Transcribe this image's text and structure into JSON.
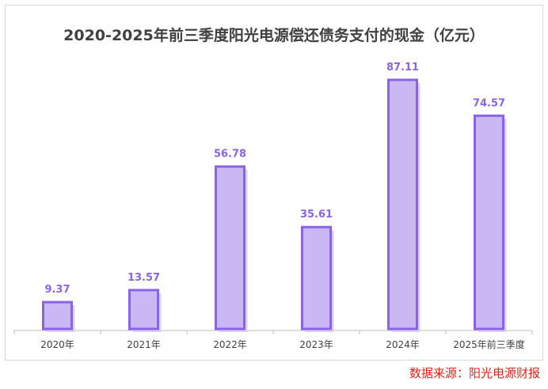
{
  "chart_data": {
    "type": "bar",
    "title": "2020-2025年前三季度阳光电源偿还债务支付的现金（亿元）",
    "categories": [
      "2020年",
      "2021年",
      "2022年",
      "2023年",
      "2024年",
      "2025年前三季度"
    ],
    "values": [
      9.37,
      13.57,
      56.78,
      35.61,
      87.11,
      74.57
    ],
    "value_labels": [
      "9.37",
      "13.57",
      "56.78",
      "35.61",
      "87.11",
      "74.57"
    ],
    "ylim": [
      0,
      87.11
    ],
    "xlabel": "",
    "ylabel": "",
    "grid": false,
    "legend": "none"
  },
  "colors": {
    "bar_fill": "#c9b8f3",
    "bar_outline": "#8a63e6",
    "bar_shadow": "#d8d0ec",
    "label_color": "#8a63e6",
    "axis": "#bfbfbf",
    "title": "#404040",
    "source": "#e8211c"
  },
  "source_note": "数据来源：阳光电源财报"
}
